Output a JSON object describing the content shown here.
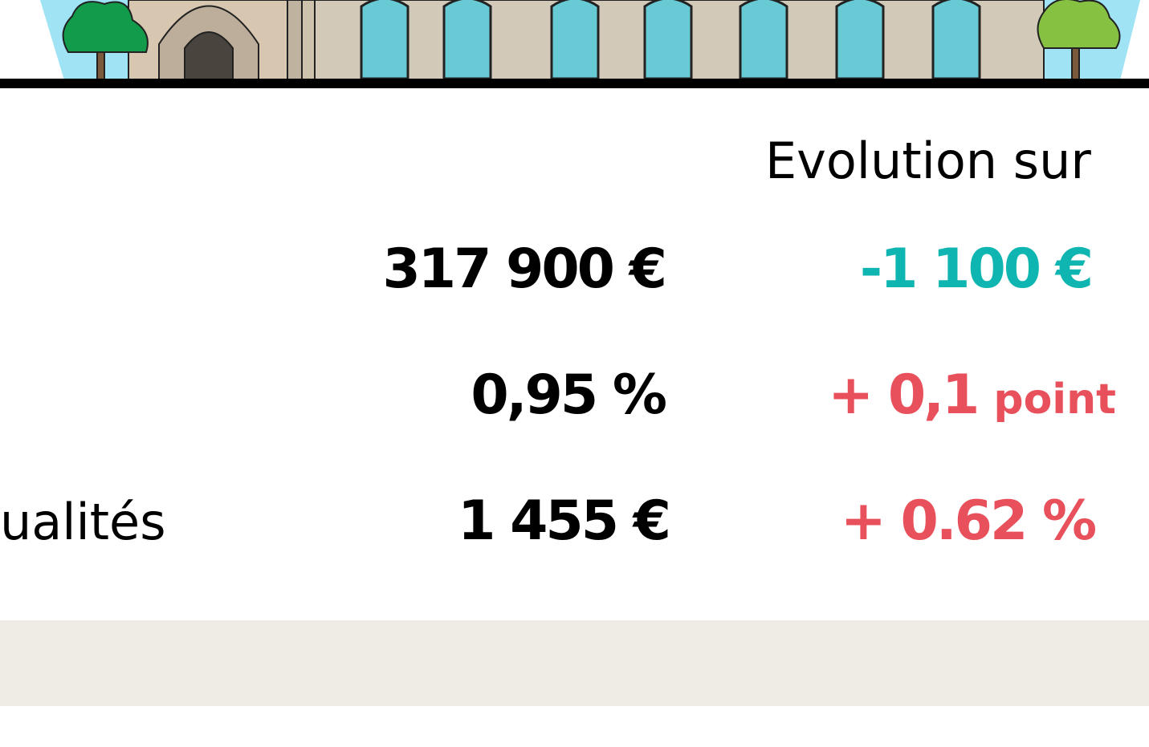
{
  "header": {
    "evolution_label": "Evolution sur"
  },
  "rows": [
    {
      "label": null,
      "value": "317 900 €",
      "evolution": "-1 100 €",
      "evolution_unit": null
    },
    {
      "label": null,
      "value": "0,95 %",
      "evolution": "+ 0,1",
      "evolution_unit": "point"
    },
    {
      "label": "ualités",
      "value": "1 455 €",
      "evolution": "+ 0.62 %",
      "evolution_unit": null
    }
  ]
}
